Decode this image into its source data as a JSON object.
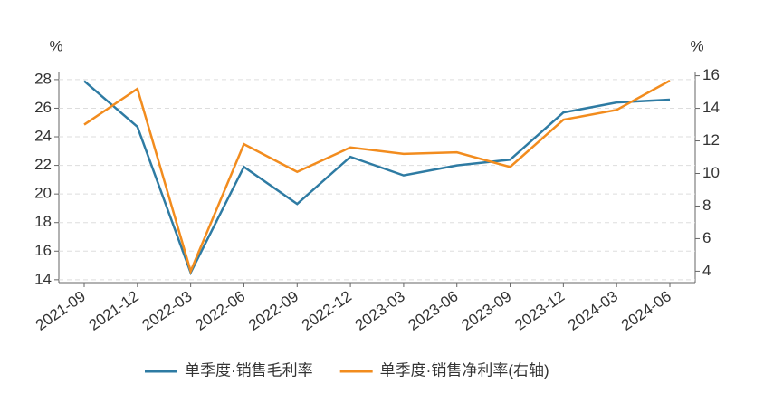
{
  "chart_data": {
    "type": "line",
    "y_unit": "%",
    "y2_unit": "%",
    "categories": [
      "2021-09",
      "2021-12",
      "2022-03",
      "2022-06",
      "2022-09",
      "2022-12",
      "2023-03",
      "2023-06",
      "2023-09",
      "2023-12",
      "2024-03",
      "2024-06"
    ],
    "series": [
      {
        "name": "单季度·销售毛利率",
        "color": "#2e7ba3",
        "values": [
          27.9,
          24.7,
          14.5,
          21.9,
          19.3,
          22.6,
          21.3,
          22.0,
          22.4,
          25.7,
          26.4,
          26.6
        ]
      },
      {
        "name": "单季度·销售净利率(右轴)",
        "color": "#f28c1e",
        "axis": "y2",
        "values": [
          13.0,
          15.2,
          4.0,
          11.8,
          10.1,
          11.6,
          11.2,
          11.3,
          10.4,
          13.3,
          13.9,
          15.7
        ]
      }
    ],
    "ylim": [
      13.8,
      28.5
    ],
    "yticks": [
      14,
      16,
      18,
      20,
      22,
      24,
      26,
      28
    ],
    "y2lim": [
      3.3,
      16.2
    ],
    "y2ticks": [
      4,
      6,
      8,
      10,
      12,
      14,
      16
    ],
    "grid": true,
    "legend": "bottom"
  }
}
